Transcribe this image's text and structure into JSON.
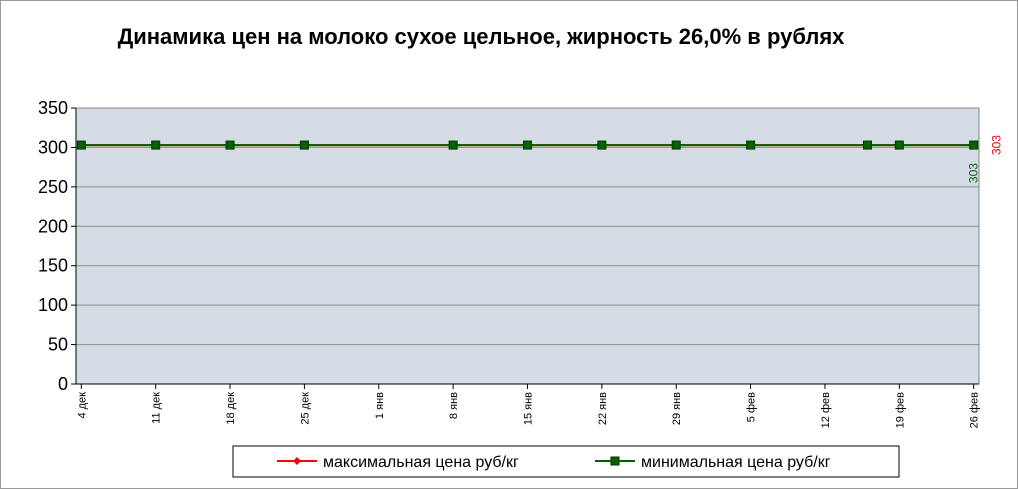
{
  "chart_data": {
    "type": "line",
    "title": "Динамика цен на молоко сухое цельное, жирность 26,0%  в рублях",
    "x": [
      0,
      7,
      14,
      21,
      35,
      42,
      49,
      56,
      63,
      74,
      77,
      84
    ],
    "xlim": [
      -0.5,
      84.5
    ],
    "xticks": [
      {
        "value": 0,
        "label": "4 дек"
      },
      {
        "value": 7,
        "label": "11 дек"
      },
      {
        "value": 14,
        "label": "18 дек"
      },
      {
        "value": 21,
        "label": "25 дек"
      },
      {
        "value": 28,
        "label": "1 янв"
      },
      {
        "value": 35,
        "label": "8 янв"
      },
      {
        "value": 42,
        "label": "15 янв"
      },
      {
        "value": 49,
        "label": "22 янв"
      },
      {
        "value": 56,
        "label": "29 янв"
      },
      {
        "value": 63,
        "label": "5 фев"
      },
      {
        "value": 70,
        "label": "12 фев"
      },
      {
        "value": 77,
        "label": "19 фев"
      },
      {
        "value": 84,
        "label": "26 фев"
      }
    ],
    "ylim": [
      0,
      350
    ],
    "yticks": [
      0,
      50,
      100,
      150,
      200,
      250,
      300,
      350
    ],
    "grid": true,
    "legend": "bottom",
    "series": [
      {
        "name": "максимальная цена руб/кг",
        "color": "#ff0000",
        "marker": "diamond",
        "values": [
          303,
          303,
          303,
          303,
          303,
          303,
          303,
          303,
          303,
          303,
          303,
          303
        ]
      },
      {
        "name": "минимальная цена руб/кг",
        "color": "#006400",
        "marker": "square",
        "values": [
          303,
          303,
          303,
          303,
          303,
          303,
          303,
          303,
          303,
          303,
          303,
          303
        ]
      }
    ]
  }
}
